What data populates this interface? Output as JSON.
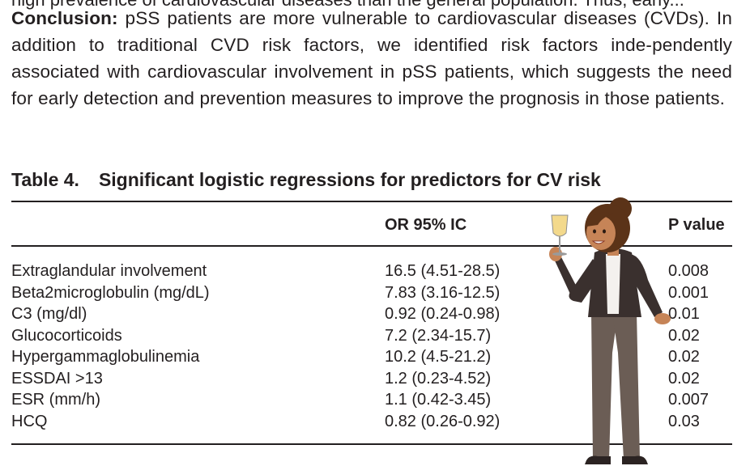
{
  "cut_line": "high prevalence of cardiovascular diseases than the general population. Thus, early...",
  "conclusion": {
    "label": "Conclusion:",
    "text": " pSS patients are more vulnerable to cardiovascular diseases (CVDs). In addition to traditional CVD risk factors, we identified risk factors inde-pendently associated with cardiovascular involvement in pSS patients, which suggests the need for early detection and prevention measures to improve the prognosis in those patients."
  },
  "table": {
    "number": "Table 4.",
    "title": "Significant logistic regressions for predictors for CV risk",
    "headers": {
      "or": "OR 95% IC",
      "p": "P value"
    },
    "rows": [
      {
        "predictor": "Extraglandular involvement",
        "or": "16.5 (4.51-28.5)",
        "p": "0.008"
      },
      {
        "predictor": "Beta2microglobulin (mg/dL)",
        "or": "7.83 (3.16-12.5)",
        "p": "0.001"
      },
      {
        "predictor": "C3 (mg/dl)",
        "or": "0.92 (0.24-0.98)",
        "p": "0.01"
      },
      {
        "predictor": "Glucocorticoids",
        "or": "7.2 (2.34-15.7)",
        "p": "0.02"
      },
      {
        "predictor": "Hypergammaglobulinemia",
        "or": "10.2 (4.5-21.2)",
        "p": "0.02"
      },
      {
        "predictor": "ESSDAI >13",
        "or": "1.2 (0.23-4.52)",
        "p": "0.02"
      },
      {
        "predictor": "ESR (mm/h)",
        "or": "1.1 (0.42-3.45)",
        "p": "0.007"
      },
      {
        "predictor": "HCQ",
        "or": "0.82 (0.26-0.92)",
        "p": "0.03"
      }
    ]
  },
  "colors": {
    "text": "#231f20",
    "skin": "#c68457",
    "hair": "#5b3318",
    "jacket": "#3a302e",
    "shirt": "#f4f1ee",
    "trousers": "#6b5d55",
    "champagne": "#f3d98c"
  }
}
